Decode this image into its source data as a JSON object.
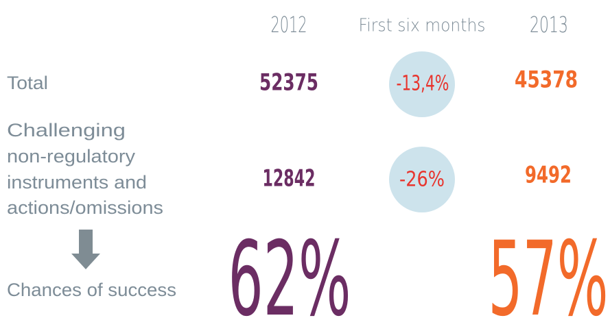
{
  "header": {
    "col_2012": "2012",
    "col_period": "First six months",
    "col_2013": "2013"
  },
  "rows": [
    {
      "label": [
        "Total"
      ],
      "value_2012": "52375",
      "change": "-13,4%",
      "value_2013": "45378"
    },
    {
      "label": [
        "Challenging",
        "non-regulatory",
        "instruments and",
        "actions/omissions"
      ],
      "value_2012": "12842",
      "change": "-26%",
      "value_2013": "9492"
    },
    {
      "label": [
        "Chances of success"
      ],
      "value_2012": "62%",
      "value_2013": "57%"
    }
  ]
}
